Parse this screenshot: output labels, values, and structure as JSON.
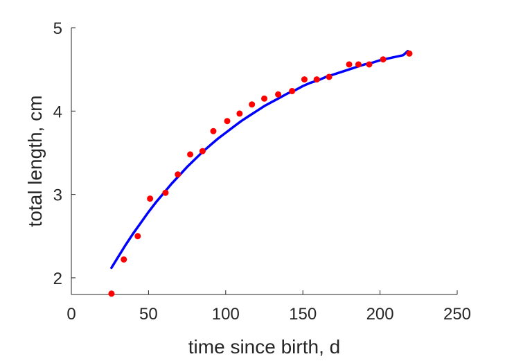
{
  "chart_data": {
    "type": "scatter",
    "title": "",
    "xlabel": "time since birth, d",
    "ylabel": "total length, cm",
    "xlim": [
      0,
      250
    ],
    "ylim": [
      1.8,
      5
    ],
    "xticks": [
      0,
      50,
      100,
      150,
      200,
      250
    ],
    "yticks": [
      2,
      3,
      4,
      5
    ],
    "grid": false,
    "legend": "none",
    "series": [
      {
        "type": "scatter",
        "color": "#ff0000",
        "x": [
          26,
          34,
          43,
          51,
          61,
          69,
          77,
          85,
          92,
          101,
          109,
          117,
          125,
          134,
          143,
          151,
          159,
          167,
          180,
          186,
          193,
          202,
          219
        ],
        "y": [
          1.81,
          2.22,
          2.5,
          2.95,
          3.02,
          3.24,
          3.48,
          3.52,
          3.76,
          3.88,
          3.97,
          4.08,
          4.15,
          4.2,
          4.24,
          4.38,
          4.38,
          4.41,
          4.56,
          4.56,
          4.56,
          4.62,
          4.69
        ]
      },
      {
        "type": "line",
        "color": "#0000ff",
        "x": [
          26,
          30,
          35,
          40,
          45,
          50,
          55,
          60,
          65,
          70,
          75,
          80,
          85,
          90,
          95,
          100,
          105,
          110,
          115,
          120,
          125,
          130,
          135,
          140,
          145,
          150,
          155,
          160,
          165,
          170,
          175,
          180,
          185,
          190,
          195,
          200,
          205,
          210,
          215,
          218
        ],
        "y": [
          2.12,
          2.24,
          2.39,
          2.53,
          2.66,
          2.79,
          2.91,
          3.02,
          3.13,
          3.23,
          3.33,
          3.42,
          3.51,
          3.59,
          3.67,
          3.74,
          3.81,
          3.88,
          3.94,
          4.0,
          4.06,
          4.11,
          4.16,
          4.21,
          4.25,
          4.3,
          4.34,
          4.37,
          4.41,
          4.44,
          4.47,
          4.5,
          4.53,
          4.56,
          4.58,
          4.61,
          4.63,
          4.65,
          4.67,
          4.72
        ]
      }
    ]
  }
}
